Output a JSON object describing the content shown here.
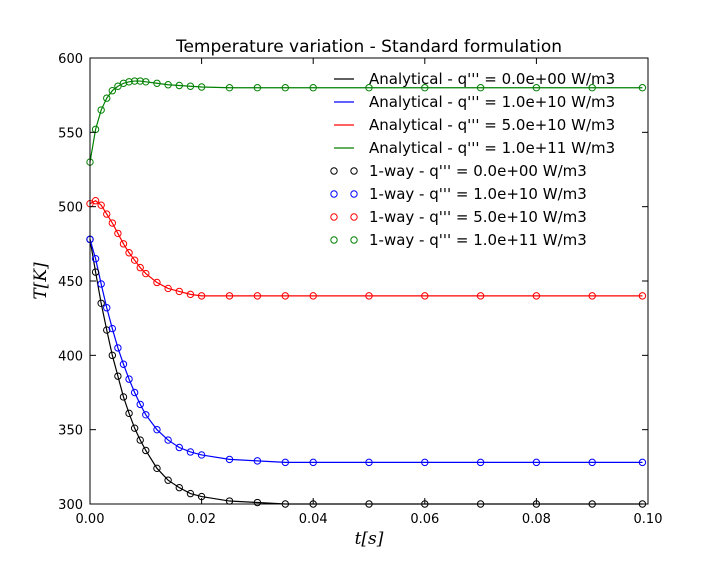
{
  "chart_data": {
    "type": "line",
    "title": "Temperature variation - Standard formulation",
    "xlabel": "t[s]",
    "ylabel": "T[K]",
    "xlim": [
      0.0,
      0.1
    ],
    "ylim": [
      300,
      600
    ],
    "xticks": [
      "0.00",
      "0.02",
      "0.04",
      "0.06",
      "0.08",
      "0.10"
    ],
    "yticks": [
      "300",
      "350",
      "400",
      "450",
      "500",
      "550",
      "600"
    ],
    "legend_position": "top-right",
    "grid": false,
    "x": [
      0.0,
      0.001,
      0.002,
      0.003,
      0.004,
      0.005,
      0.006,
      0.007,
      0.008,
      0.009,
      0.01,
      0.012,
      0.014,
      0.016,
      0.018,
      0.02,
      0.025,
      0.03,
      0.035,
      0.04,
      0.05,
      0.06,
      0.07,
      0.08,
      0.09,
      0.099
    ],
    "series": [
      {
        "name": "Analytical - q''' = 0.0e+00 W/m3",
        "kind": "line",
        "color": "#000000",
        "values": [
          478,
          456,
          435,
          417,
          400,
          386,
          372,
          361,
          351,
          343,
          336,
          324,
          316,
          311,
          307,
          305,
          302,
          301,
          300,
          300,
          300,
          300,
          300,
          300,
          300,
          300
        ]
      },
      {
        "name": "Analytical - q''' = 1.0e+10 W/m3",
        "kind": "line",
        "color": "#0000ff",
        "values": [
          478,
          465,
          448,
          432,
          418,
          405,
          394,
          384,
          375,
          367,
          360,
          350,
          343,
          338,
          335,
          333,
          330,
          329,
          328,
          328,
          328,
          328,
          328,
          328,
          328,
          328
        ]
      },
      {
        "name": "Analytical - q''' = 5.0e+10 W/m3",
        "kind": "line",
        "color": "#ff0000",
        "values": [
          502,
          504,
          501,
          495,
          489,
          482,
          475,
          469,
          464,
          459,
          455,
          449,
          445,
          443,
          441,
          440,
          440,
          440,
          440,
          440,
          440,
          440,
          440,
          440,
          440,
          440
        ]
      },
      {
        "name": "Analytical - q''' = 1.0e+11 W/m3",
        "kind": "line",
        "color": "#008000",
        "values": [
          530,
          552,
          565,
          573,
          578,
          581,
          583,
          584,
          584.5,
          584.5,
          584,
          583,
          582,
          581.5,
          581,
          580.5,
          580,
          580,
          580,
          580,
          580,
          580,
          580,
          580,
          580,
          580
        ]
      },
      {
        "name": "1-way - q''' = 0.0e+00 W/m3",
        "kind": "markers",
        "color": "#000000",
        "values": [
          478,
          456,
          435,
          417,
          400,
          386,
          372,
          361,
          351,
          343,
          336,
          324,
          316,
          311,
          307,
          305,
          302,
          301,
          300,
          300,
          300,
          300,
          300,
          300,
          300,
          300
        ]
      },
      {
        "name": "1-way - q''' = 1.0e+10 W/m3",
        "kind": "markers",
        "color": "#0000ff",
        "values": [
          478,
          465,
          448,
          432,
          418,
          405,
          394,
          384,
          375,
          367,
          360,
          350,
          343,
          338,
          335,
          333,
          330,
          329,
          328,
          328,
          328,
          328,
          328,
          328,
          328,
          328
        ]
      },
      {
        "name": "1-way - q''' = 5.0e+10 W/m3",
        "kind": "markers",
        "color": "#ff0000",
        "values": [
          502,
          504,
          501,
          495,
          489,
          482,
          475,
          469,
          464,
          459,
          455,
          449,
          445,
          443,
          441,
          440,
          440,
          440,
          440,
          440,
          440,
          440,
          440,
          440,
          440,
          440
        ]
      },
      {
        "name": "1-way - q''' = 1.0e+11 W/m3",
        "kind": "markers",
        "color": "#008000",
        "values": [
          530,
          552,
          565,
          573,
          578,
          581,
          583,
          584,
          584.5,
          584.5,
          584,
          583,
          582,
          581.5,
          581,
          580.5,
          580,
          580,
          580,
          580,
          580,
          580,
          580,
          580,
          580,
          580
        ]
      }
    ]
  }
}
